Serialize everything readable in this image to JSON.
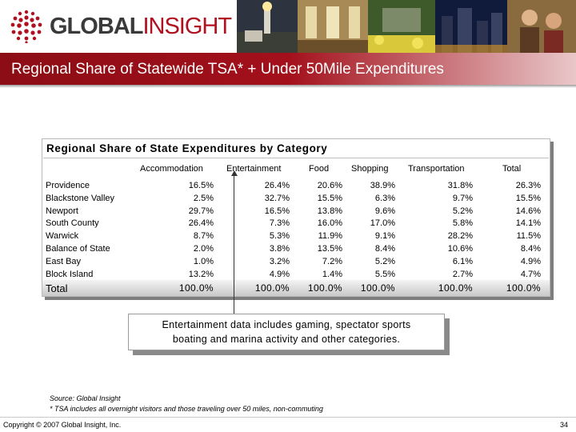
{
  "header": {
    "logo_global": "GLOBAL",
    "logo_insight": "INSIGHT",
    "title": "Regional Share of Statewide TSA* + Under 50Mile Expenditures"
  },
  "table": {
    "title": "Regional Share of State Expenditures by Category",
    "columns": [
      "Accommodation",
      "Entertainment",
      "Food",
      "Shopping",
      "Transportation",
      "Total"
    ],
    "rows": [
      {
        "label": "Providence",
        "values": [
          "16.5%",
          "26.4%",
          "20.6%",
          "38.9%",
          "31.8%",
          "26.3%"
        ]
      },
      {
        "label": "Blackstone Valley",
        "values": [
          "2.5%",
          "32.7%",
          "15.5%",
          "6.3%",
          "9.7%",
          "15.5%"
        ]
      },
      {
        "label": "Newport",
        "values": [
          "29.7%",
          "16.5%",
          "13.8%",
          "9.6%",
          "5.2%",
          "14.6%"
        ]
      },
      {
        "label": "South County",
        "values": [
          "26.4%",
          "7.3%",
          "16.0%",
          "17.0%",
          "5.8%",
          "14.1%"
        ]
      },
      {
        "label": "Warwick",
        "values": [
          "8.7%",
          "5.3%",
          "11.9%",
          "9.1%",
          "28.2%",
          "11.5%"
        ]
      },
      {
        "label": "Balance of State",
        "values": [
          "2.0%",
          "3.8%",
          "13.5%",
          "8.4%",
          "10.6%",
          "8.4%"
        ]
      },
      {
        "label": "East Bay",
        "values": [
          "1.0%",
          "3.2%",
          "7.2%",
          "5.2%",
          "6.1%",
          "4.9%"
        ]
      },
      {
        "label": "Block Island",
        "values": [
          "13.2%",
          "4.9%",
          "1.4%",
          "5.5%",
          "2.7%",
          "4.7%"
        ]
      }
    ],
    "total": {
      "label": "Total",
      "values": [
        "100.0%",
        "100.0%",
        "100.0%",
        "100.0%",
        "100.0%",
        "100.0%"
      ]
    }
  },
  "note": {
    "line1": "Entertainment data includes gaming, spectator sports",
    "line2": "boating and marina activity and other categories."
  },
  "source": {
    "line1": "Source:  Global Insight",
    "line2": "* TSA includes all overnight visitors and those traveling over 50 miles, non-commuting"
  },
  "footer": {
    "copyright": "Copyright © 2007 Global Insight, Inc.",
    "page_number": "34"
  },
  "colors": {
    "title_bar": "#a3101b",
    "logo_red": "#b01020",
    "logo_gray": "#3a3a3a"
  }
}
